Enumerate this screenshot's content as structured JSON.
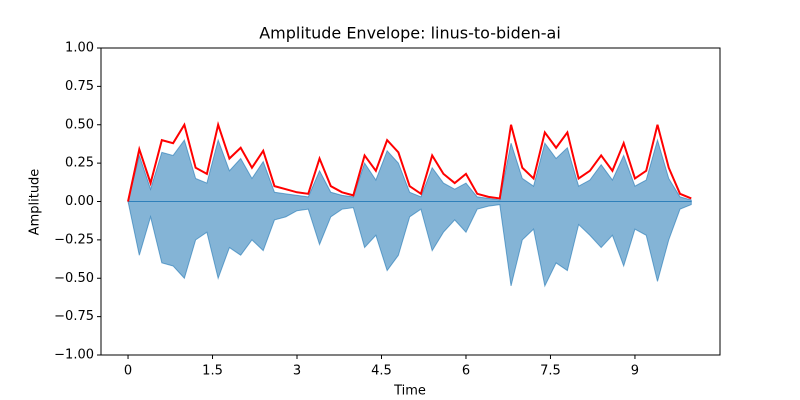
{
  "chart_data": {
    "type": "waveform",
    "title": "Amplitude Envelope: linus-to-biden-ai",
    "x_label": "Time",
    "y_label": "Amplitude",
    "x": [
      0,
      0.2,
      0.4,
      0.6,
      0.8,
      1,
      1.2,
      1.4,
      1.6,
      1.8,
      2,
      2.2,
      2.4,
      2.6,
      2.8,
      3,
      3.2,
      3.4,
      3.6,
      3.8,
      4,
      4.2,
      4.4,
      4.6,
      4.8,
      5,
      5.2,
      5.4,
      5.6,
      5.8,
      6,
      6.2,
      6.4,
      6.6,
      6.8,
      7,
      7.2,
      7.4,
      7.6,
      7.8,
      8,
      8.2,
      8.4,
      8.6,
      8.8,
      9,
      9.2,
      9.4,
      9.6,
      9.8,
      10
    ],
    "series": [
      {
        "color": "#1f77b4",
        "values": [
          0,
          0.3,
          0.08,
          0.32,
          0.3,
          0.4,
          0.15,
          0.12,
          0.4,
          0.2,
          0.28,
          0.15,
          0.26,
          0.06,
          0.05,
          0.04,
          0.03,
          0.2,
          0.06,
          0.04,
          0.03,
          0.25,
          0.14,
          0.33,
          0.25,
          0.06,
          0.03,
          0.22,
          0.12,
          0.08,
          0.12,
          0.03,
          0.02,
          0.01,
          0.38,
          0.15,
          0.1,
          0.38,
          0.28,
          0.35,
          0.1,
          0.14,
          0.24,
          0.14,
          0.3,
          0.1,
          0.14,
          0.4,
          0.15,
          0.03,
          0.01
        ]
      },
      {
        "color": "#1f77b4",
        "values": [
          0,
          -0.35,
          -0.1,
          -0.4,
          -0.42,
          -0.5,
          -0.25,
          -0.2,
          -0.5,
          -0.3,
          -0.35,
          -0.25,
          -0.32,
          -0.12,
          -0.1,
          -0.06,
          -0.05,
          -0.28,
          -0.1,
          -0.05,
          -0.04,
          -0.3,
          -0.22,
          -0.45,
          -0.35,
          -0.1,
          -0.05,
          -0.32,
          -0.2,
          -0.12,
          -0.2,
          -0.05,
          -0.03,
          -0.02,
          -0.55,
          -0.25,
          -0.18,
          -0.55,
          -0.4,
          -0.45,
          -0.15,
          -0.22,
          -0.3,
          -0.22,
          -0.42,
          -0.18,
          -0.22,
          -0.52,
          -0.25,
          -0.05,
          -0.02
        ]
      },
      {
        "color": "#ff0000",
        "values": [
          0,
          0.34,
          0.12,
          0.4,
          0.38,
          0.5,
          0.22,
          0.18,
          0.5,
          0.28,
          0.35,
          0.22,
          0.33,
          0.1,
          0.08,
          0.06,
          0.05,
          0.28,
          0.1,
          0.06,
          0.04,
          0.3,
          0.2,
          0.4,
          0.32,
          0.1,
          0.05,
          0.3,
          0.18,
          0.12,
          0.18,
          0.05,
          0.03,
          0.02,
          0.5,
          0.22,
          0.15,
          0.45,
          0.35,
          0.45,
          0.15,
          0.2,
          0.3,
          0.2,
          0.38,
          0.15,
          0.2,
          0.5,
          0.22,
          0.05,
          0.02
        ]
      }
    ],
    "xlim": [
      -0.48,
      10.51
    ],
    "xticks": [
      0,
      1.5,
      3,
      4.5,
      6,
      7.5,
      9
    ],
    "ylim": [
      -1,
      1
    ],
    "yticks": [
      {
        "value": -1,
        "label": "−1.00"
      },
      {
        "value": -0.75,
        "label": "−0.75"
      },
      {
        "value": -0.5,
        "label": "−0.50"
      },
      {
        "value": -0.25,
        "label": "−0.25"
      },
      {
        "value": 0,
        "label": "0.00"
      },
      {
        "value": 0.25,
        "label": "0.25"
      },
      {
        "value": 0.5,
        "label": "0.50"
      },
      {
        "value": 0.75,
        "label": "0.75"
      },
      {
        "value": 1,
        "label": "1.00"
      }
    ]
  }
}
